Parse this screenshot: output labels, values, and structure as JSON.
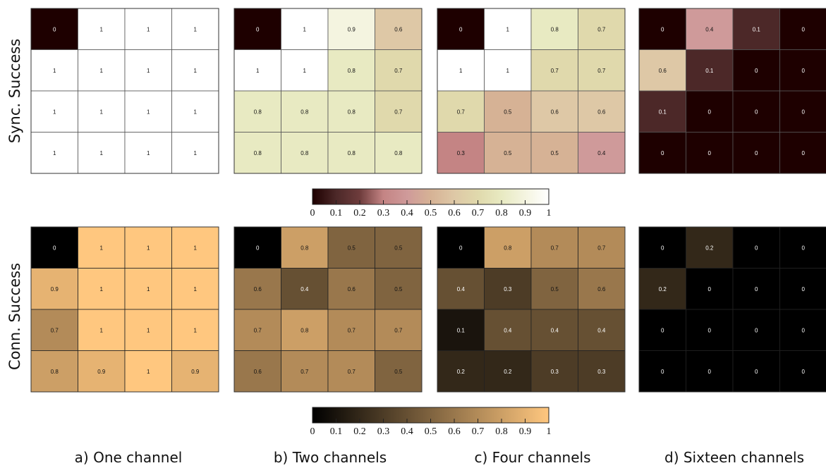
{
  "rows": [
    {
      "label": "Sync. Success",
      "colormap": "pink"
    },
    {
      "label": "Conn. Success",
      "colormap": "copper"
    }
  ],
  "panels": [
    {
      "caption": "a) One channel"
    },
    {
      "caption": "b) Two channels"
    },
    {
      "caption": "c) Four channels"
    },
    {
      "caption": "d) Sixteen channels"
    }
  ],
  "colorbars": [
    {
      "colormap": "pink",
      "ticks": [
        "0",
        "0.1",
        "0.2",
        "0.3",
        "0.4",
        "0.5",
        "0.6",
        "0.7",
        "0.8",
        "0.9",
        "1"
      ]
    },
    {
      "colormap": "copper",
      "ticks": [
        "0",
        "0.1",
        "0.2",
        "0.3",
        "0.4",
        "0.5",
        "0.6",
        "0.7",
        "0.8",
        "0.9",
        "1"
      ]
    }
  ],
  "chart_data": [
    {
      "type": "heatmap",
      "row": "Sync. Success",
      "panel": "a) One channel",
      "vmin": 0,
      "vmax": 1,
      "values": [
        [
          0,
          1,
          1,
          1
        ],
        [
          1,
          1,
          1,
          1
        ],
        [
          1,
          1,
          1,
          1
        ],
        [
          1,
          1,
          1,
          1
        ]
      ]
    },
    {
      "type": "heatmap",
      "row": "Sync. Success",
      "panel": "b) Two channels",
      "vmin": 0,
      "vmax": 1,
      "values": [
        [
          0,
          1,
          0.9,
          0.6
        ],
        [
          1,
          1,
          0.8,
          0.7
        ],
        [
          0.8,
          0.8,
          0.8,
          0.7
        ],
        [
          0.8,
          0.8,
          0.8,
          0.8
        ]
      ]
    },
    {
      "type": "heatmap",
      "row": "Sync. Success",
      "panel": "c) Four channels",
      "vmin": 0,
      "vmax": 1,
      "values": [
        [
          0,
          1,
          0.8,
          0.7
        ],
        [
          1,
          1,
          0.7,
          0.7
        ],
        [
          0.7,
          0.5,
          0.6,
          0.6
        ],
        [
          0.3,
          0.5,
          0.5,
          0.4
        ]
      ]
    },
    {
      "type": "heatmap",
      "row": "Sync. Success",
      "panel": "d) Sixteen channels",
      "vmin": 0,
      "vmax": 1,
      "values": [
        [
          0,
          0.4,
          0.1,
          0
        ],
        [
          0.6,
          0.1,
          0,
          0
        ],
        [
          0.1,
          0,
          0,
          0
        ],
        [
          0,
          0,
          0,
          0
        ]
      ]
    },
    {
      "type": "heatmap",
      "row": "Conn. Success",
      "panel": "a) One channel",
      "vmin": 0,
      "vmax": 1,
      "values": [
        [
          0,
          1,
          1,
          1
        ],
        [
          0.9,
          1,
          1,
          1
        ],
        [
          0.7,
          1,
          1,
          1
        ],
        [
          0.8,
          0.9,
          1,
          0.9
        ]
      ]
    },
    {
      "type": "heatmap",
      "row": "Conn. Success",
      "panel": "b) Two channels",
      "vmin": 0,
      "vmax": 1,
      "values": [
        [
          0,
          0.8,
          0.5,
          0.5
        ],
        [
          0.6,
          0.4,
          0.6,
          0.5
        ],
        [
          0.7,
          0.8,
          0.7,
          0.7
        ],
        [
          0.6,
          0.7,
          0.7,
          0.5
        ]
      ]
    },
    {
      "type": "heatmap",
      "row": "Conn. Success",
      "panel": "c) Four channels",
      "vmin": 0,
      "vmax": 1,
      "values": [
        [
          0,
          0.8,
          0.7,
          0.7
        ],
        [
          0.4,
          0.3,
          0.5,
          0.6
        ],
        [
          0.1,
          0.4,
          0.4,
          0.4
        ],
        [
          0.2,
          0.2,
          0.3,
          0.3
        ]
      ]
    },
    {
      "type": "heatmap",
      "row": "Conn. Success",
      "panel": "d) Sixteen channels",
      "vmin": 0,
      "vmax": 1,
      "values": [
        [
          0,
          0.2,
          0,
          0
        ],
        [
          0.2,
          0,
          0,
          0
        ],
        [
          0,
          0,
          0,
          0
        ],
        [
          0,
          0,
          0,
          0
        ]
      ]
    }
  ]
}
